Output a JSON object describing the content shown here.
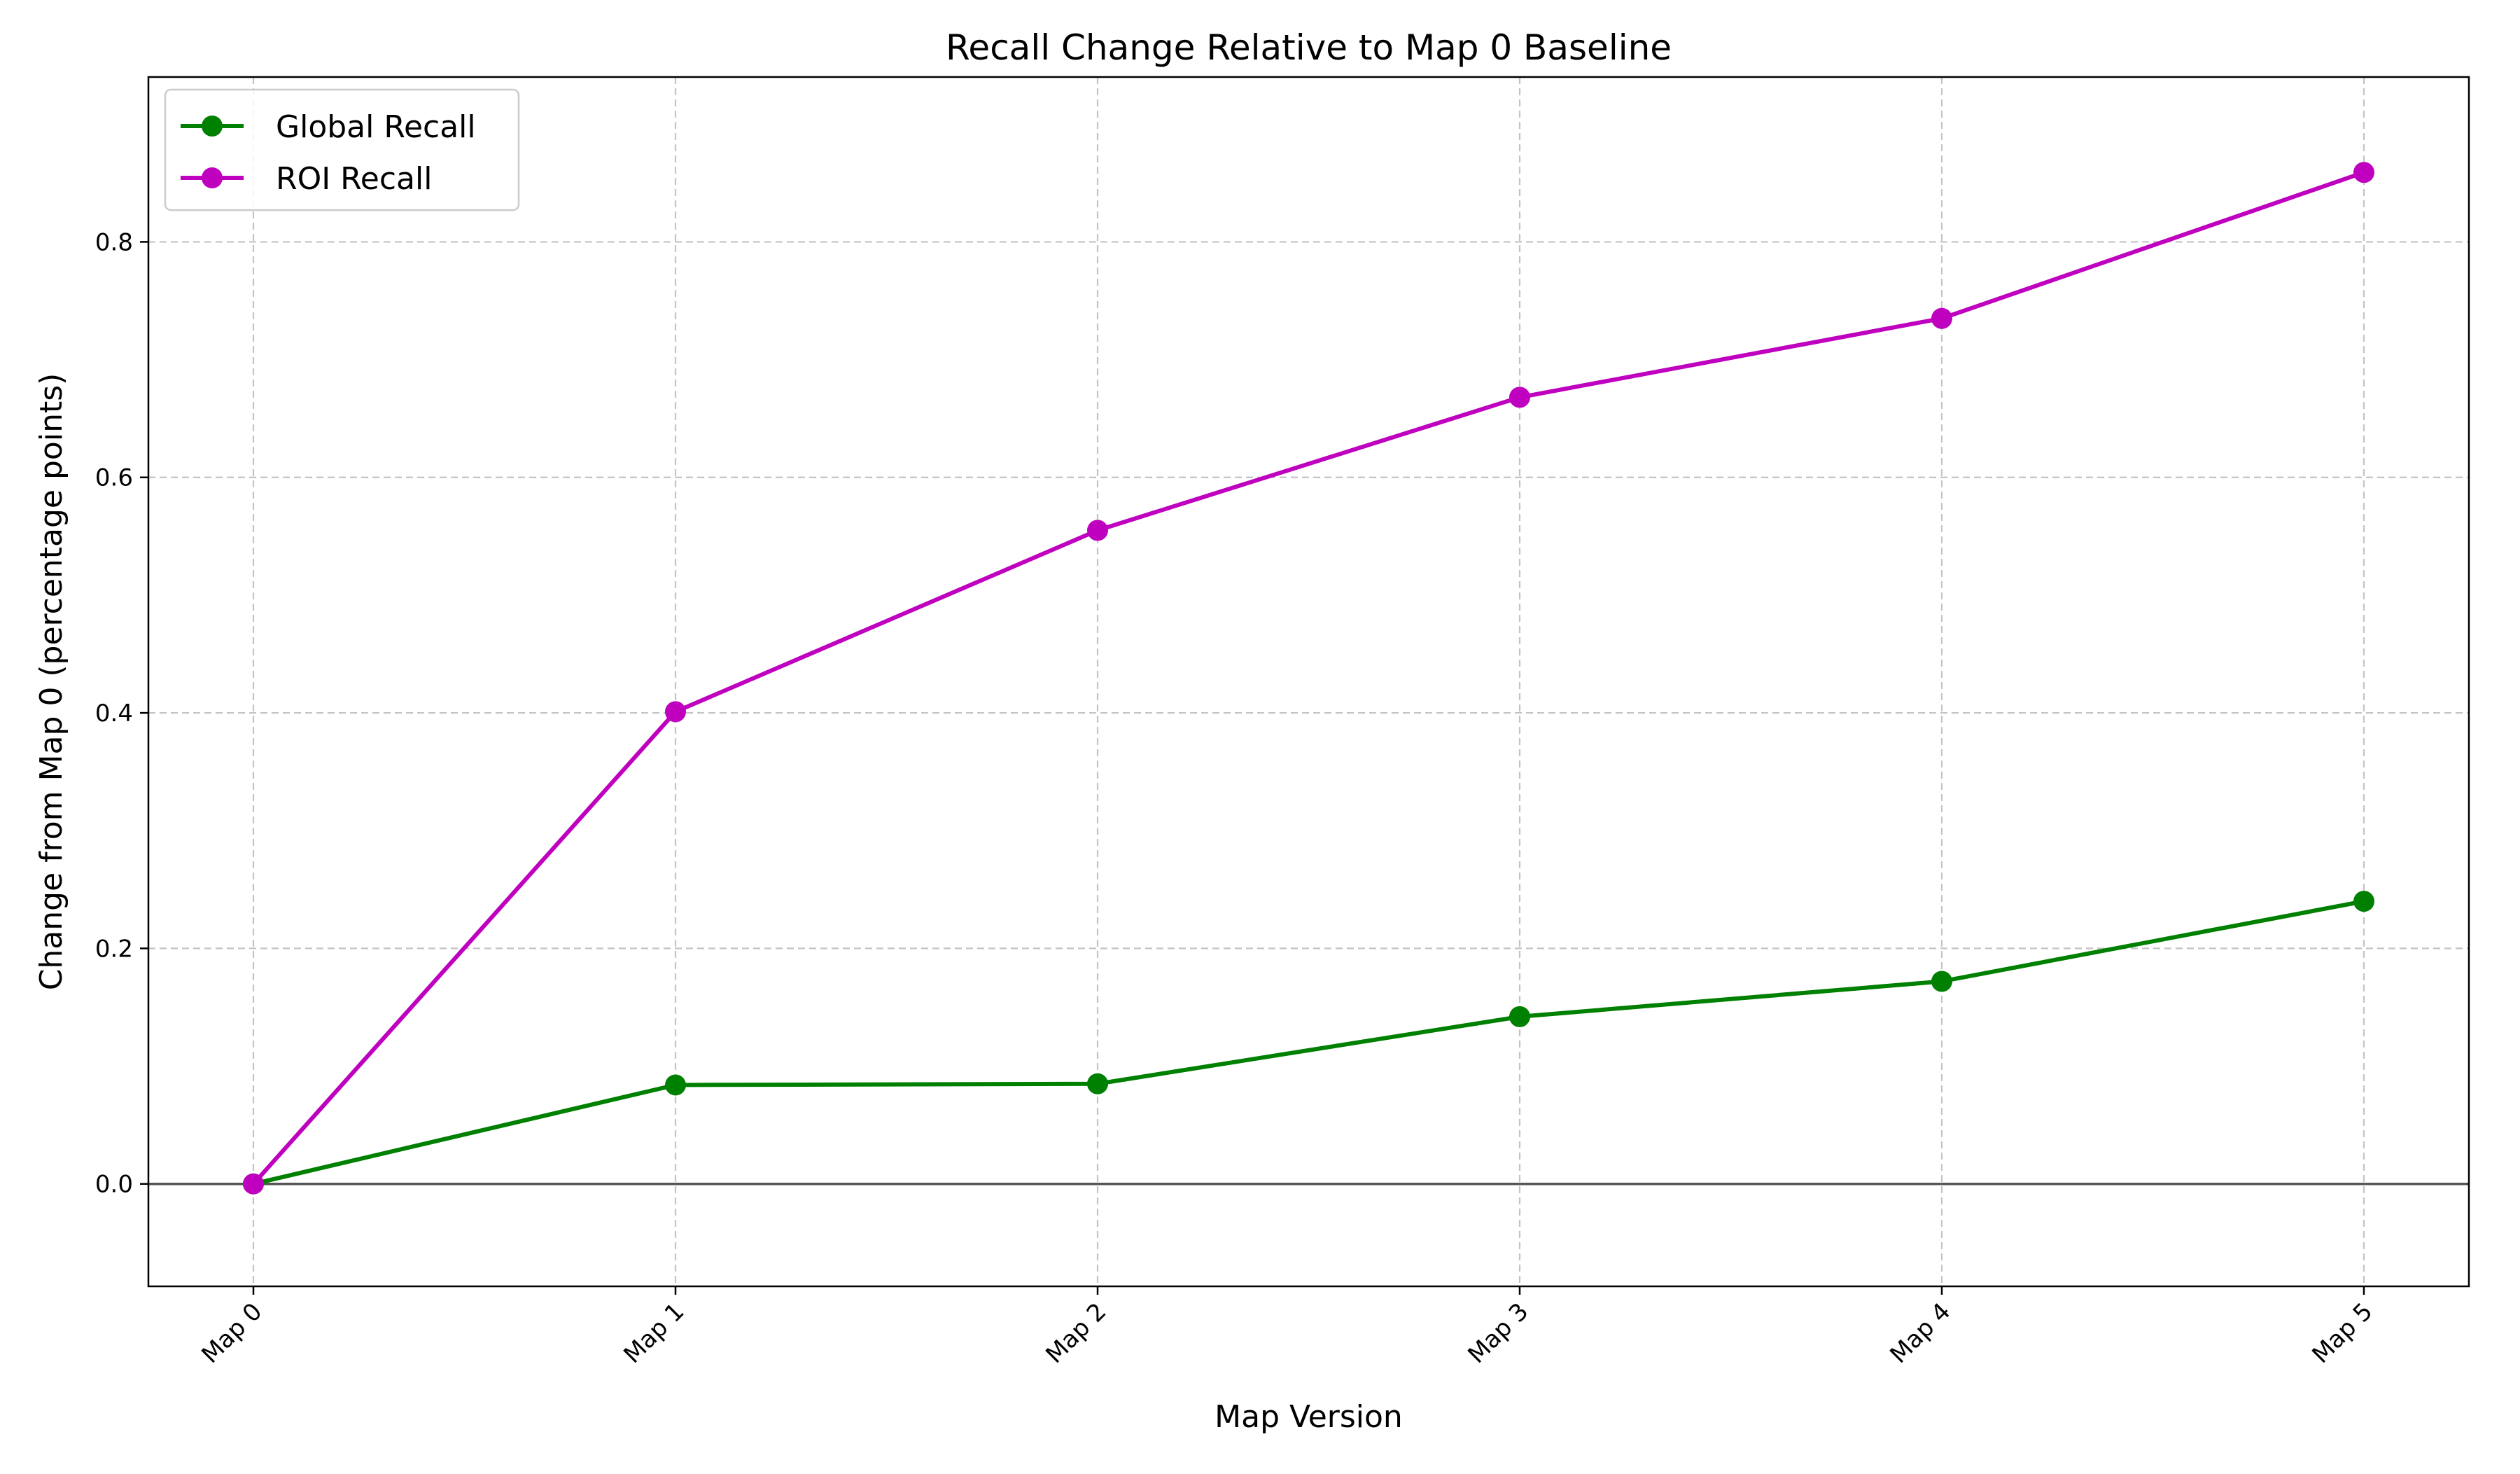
{
  "chart_data": {
    "type": "line",
    "title": "Recall Change Relative to Map 0 Baseline",
    "xlabel": "Map Version",
    "ylabel": "Change from Map 0 (percentage points)",
    "categories": [
      "Map 0",
      "Map 1",
      "Map 2",
      "Map 3",
      "Map 4",
      "Map 5"
    ],
    "series": [
      {
        "name": "Global Recall",
        "color": "#008000",
        "marker": "circle",
        "values": [
          0.0,
          0.084,
          0.085,
          0.142,
          0.172,
          0.24
        ]
      },
      {
        "name": "ROI Recall",
        "color": "#bf00bf",
        "marker": "circle",
        "values": [
          0.0,
          0.401,
          0.555,
          0.668,
          0.735,
          0.859
        ]
      }
    ],
    "ylim": [
      -0.087,
      0.94
    ],
    "yticks": [
      0.0,
      0.2,
      0.4,
      0.6,
      0.8
    ],
    "ytick_labels": [
      "0.0",
      "0.2",
      "0.4",
      "0.6",
      "0.8"
    ],
    "grid": true,
    "grid_style": "dashed",
    "baseline": 0.0,
    "baseline_color": "#555555",
    "legend_position": "top-left",
    "xtick_rotation": 45
  }
}
